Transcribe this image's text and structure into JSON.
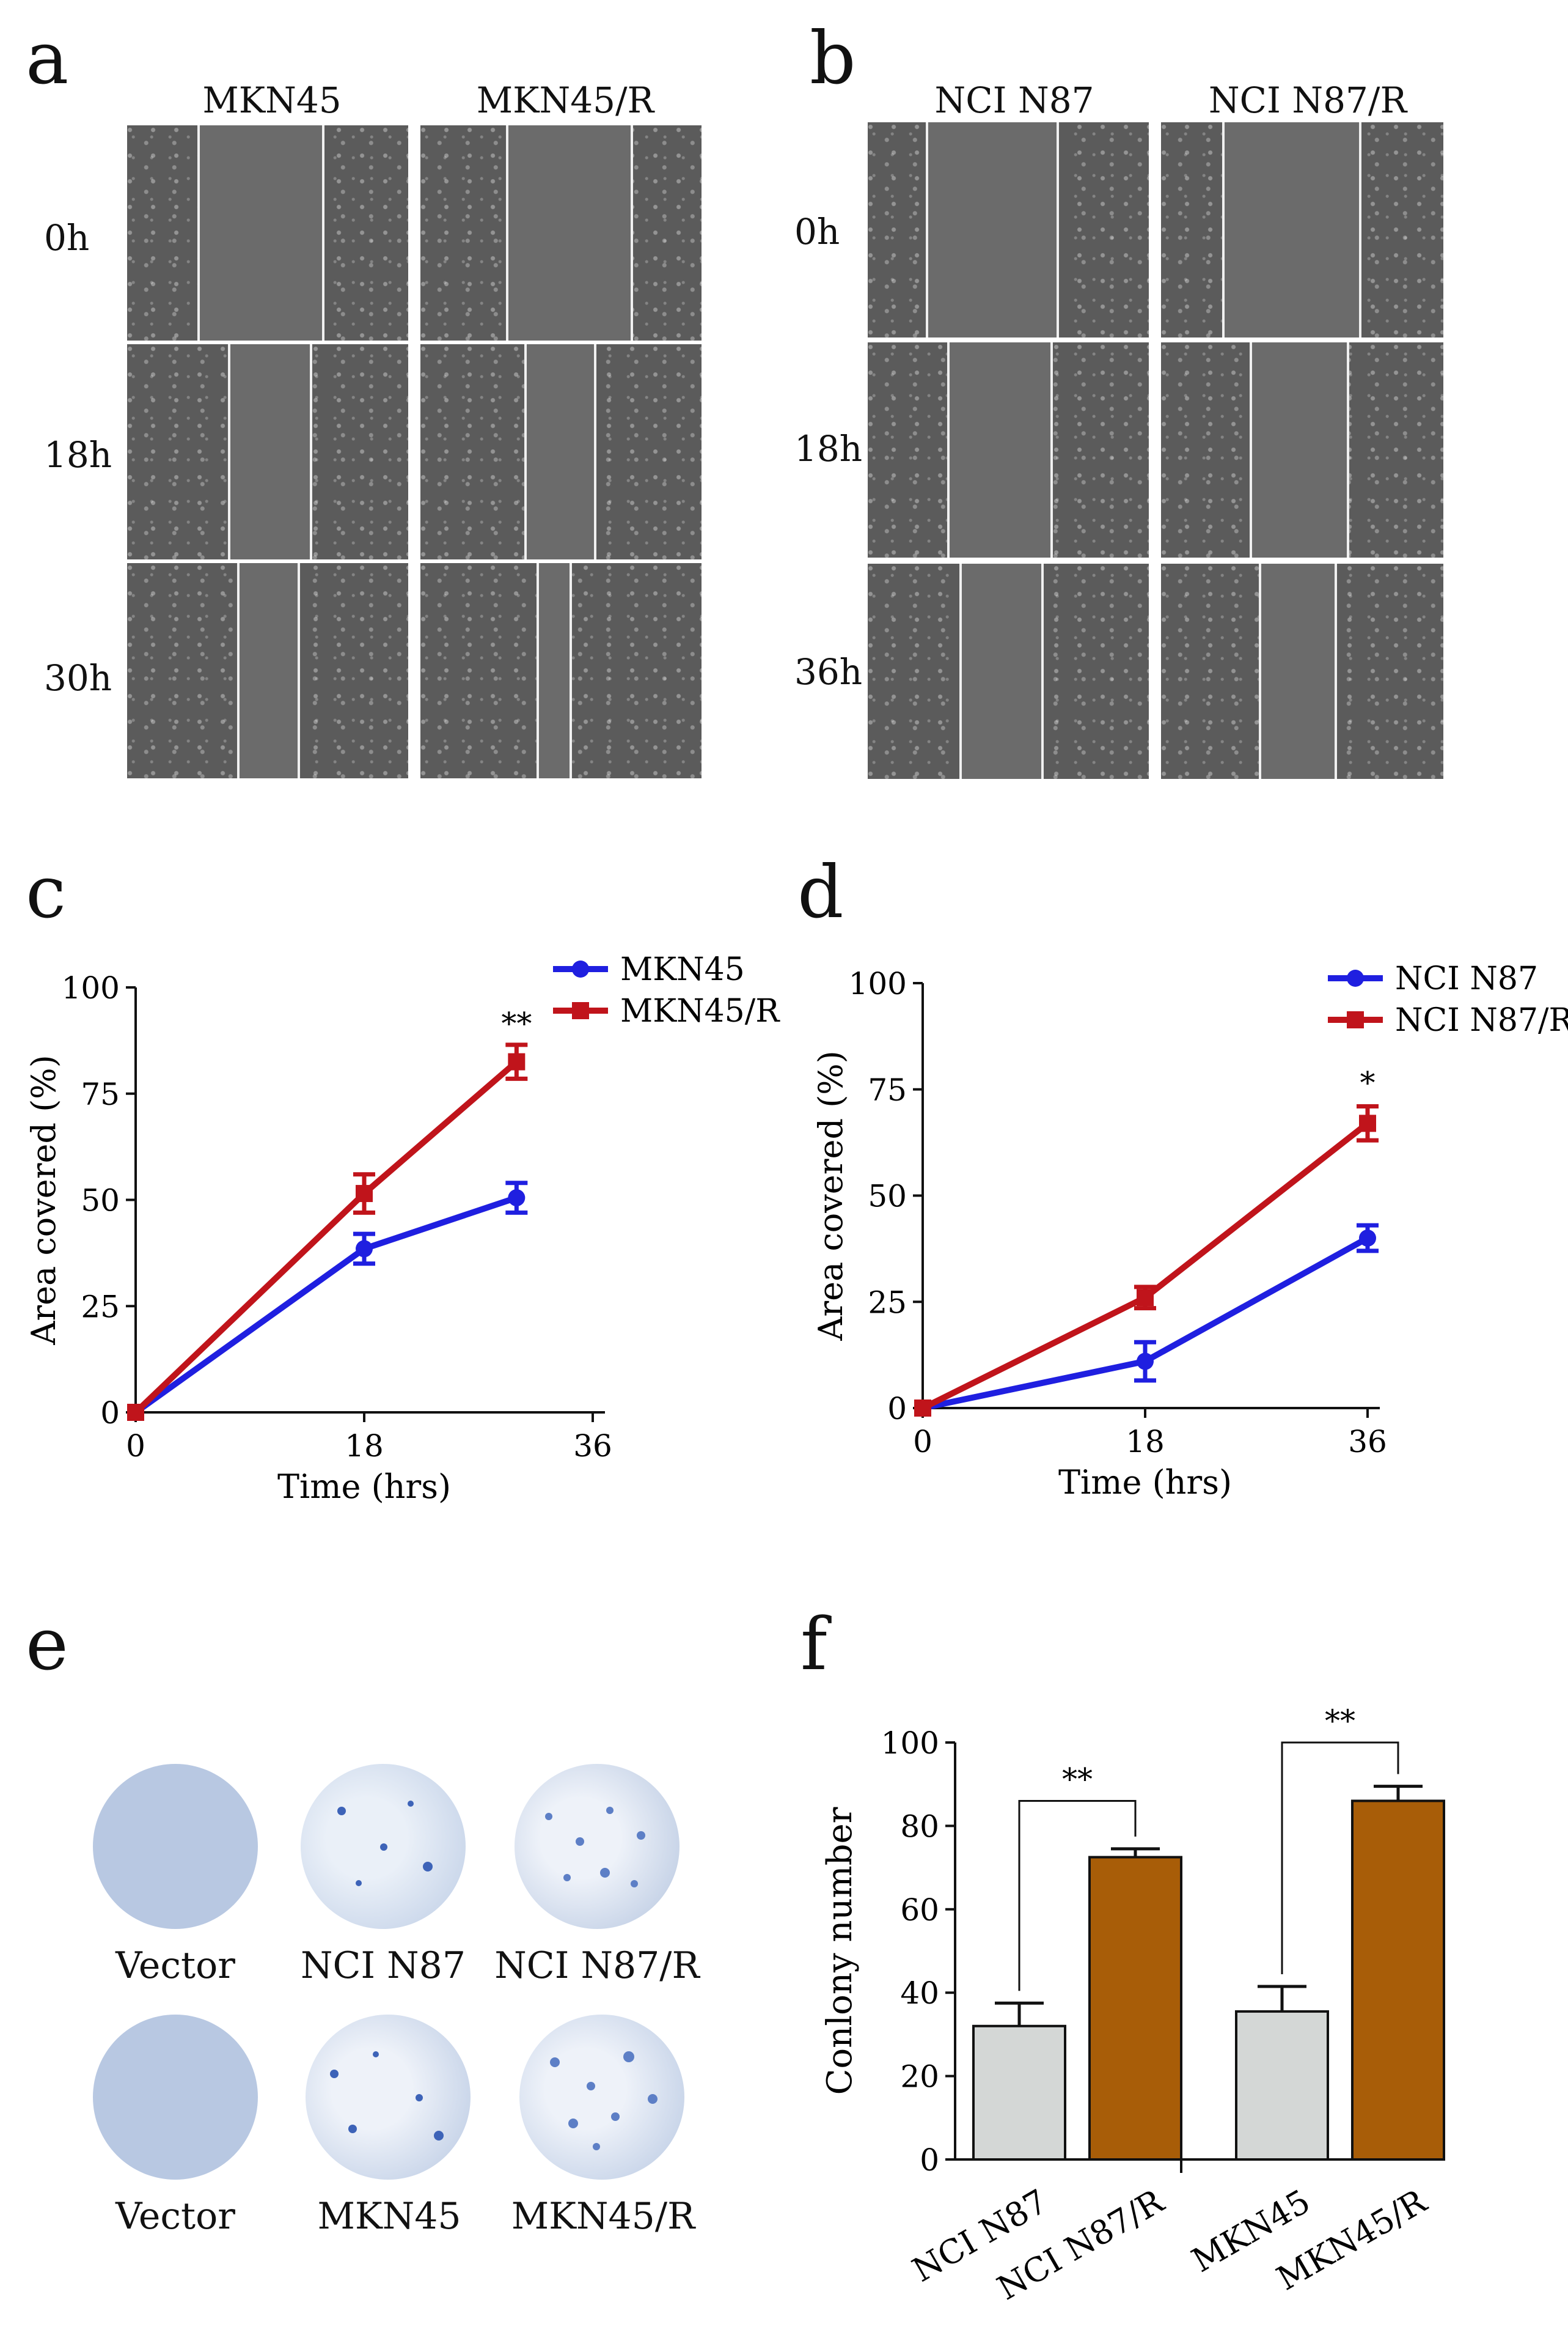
{
  "panels": {
    "a": {
      "letter": "a",
      "columns": [
        "MKN45",
        "MKN45/R"
      ],
      "rows": [
        "0h",
        "18h",
        "30h"
      ]
    },
    "b": {
      "letter": "b",
      "columns": [
        "NCI N87",
        "NCI N87/R"
      ],
      "rows": [
        "0h",
        "18h",
        "36h"
      ]
    },
    "c": {
      "letter": "c"
    },
    "d": {
      "letter": "d"
    },
    "e": {
      "letter": "e",
      "top_labels": [
        "Vector",
        "NCI N87",
        "NCI N87/R"
      ],
      "bottom_labels": [
        "Vector",
        "MKN45",
        "MKN45/R"
      ]
    },
    "f": {
      "letter": "f"
    }
  },
  "colors": {
    "blue": "#1f1fe0",
    "red": "#c0141b",
    "bar_grey": "#d4d7d6",
    "bar_brown": "#a85d08",
    "dish": "#b8c8e2",
    "colony": "#3d63b8"
  },
  "chart_data": [
    {
      "id": "c",
      "type": "line",
      "xlabel": "Time (hrs)",
      "ylabel": "Area covered (%)",
      "xlim": [
        0,
        36
      ],
      "ylim": [
        0,
        100
      ],
      "xticks": [
        0,
        18,
        36
      ],
      "yticks": [
        0,
        25,
        50,
        75,
        100
      ],
      "series": [
        {
          "name": "MKN45",
          "color": "#1f1fe0",
          "marker": "circle",
          "x": [
            0,
            18,
            30
          ],
          "y": [
            0,
            38.5,
            50.5
          ],
          "err": [
            0,
            3.5,
            3.5
          ]
        },
        {
          "name": "MKN45/R",
          "color": "#c0141b",
          "marker": "square",
          "x": [
            0,
            18,
            30
          ],
          "y": [
            0,
            51.5,
            82.5
          ],
          "err": [
            0,
            4.5,
            4
          ]
        }
      ],
      "annotations": [
        {
          "text": "**",
          "x": 30,
          "y": 89
        }
      ],
      "legend": "top-right"
    },
    {
      "id": "d",
      "type": "line",
      "xlabel": "Time (hrs)",
      "ylabel": "Area covered (%)",
      "xlim": [
        0,
        36
      ],
      "ylim": [
        0,
        100
      ],
      "xticks": [
        0,
        18,
        36
      ],
      "yticks": [
        0,
        25,
        50,
        75,
        100
      ],
      "series": [
        {
          "name": "NCI N87",
          "color": "#1f1fe0",
          "marker": "circle",
          "x": [
            0,
            18,
            36
          ],
          "y": [
            0,
            11,
            40
          ],
          "err": [
            0,
            4.5,
            3
          ]
        },
        {
          "name": "NCI N87/R",
          "color": "#c0141b",
          "marker": "square",
          "x": [
            0,
            18,
            36
          ],
          "y": [
            0,
            26,
            67
          ],
          "err": [
            0,
            2.5,
            4
          ]
        }
      ],
      "annotations": [
        {
          "text": "*",
          "x": 36,
          "y": 74
        }
      ],
      "legend": "top-right"
    },
    {
      "id": "f",
      "type": "bar",
      "ylabel": "Conlony number",
      "ylim": [
        0,
        100
      ],
      "yticks": [
        0,
        20,
        40,
        60,
        80,
        100
      ],
      "categories": [
        "NCI N87",
        "NCI N87/R",
        "MKN45",
        "MKN45/R"
      ],
      "values": [
        32,
        72.5,
        35.5,
        86
      ],
      "err": [
        5.5,
        2,
        6,
        3.5
      ],
      "bar_colors": [
        "#d4d7d6",
        "#a85d08",
        "#d4d7d6",
        "#a85d08"
      ],
      "brackets": [
        {
          "from": 0,
          "to": 1,
          "y": 86,
          "text": "**"
        },
        {
          "from": 2,
          "to": 3,
          "y": 100,
          "text": "**"
        }
      ]
    }
  ]
}
